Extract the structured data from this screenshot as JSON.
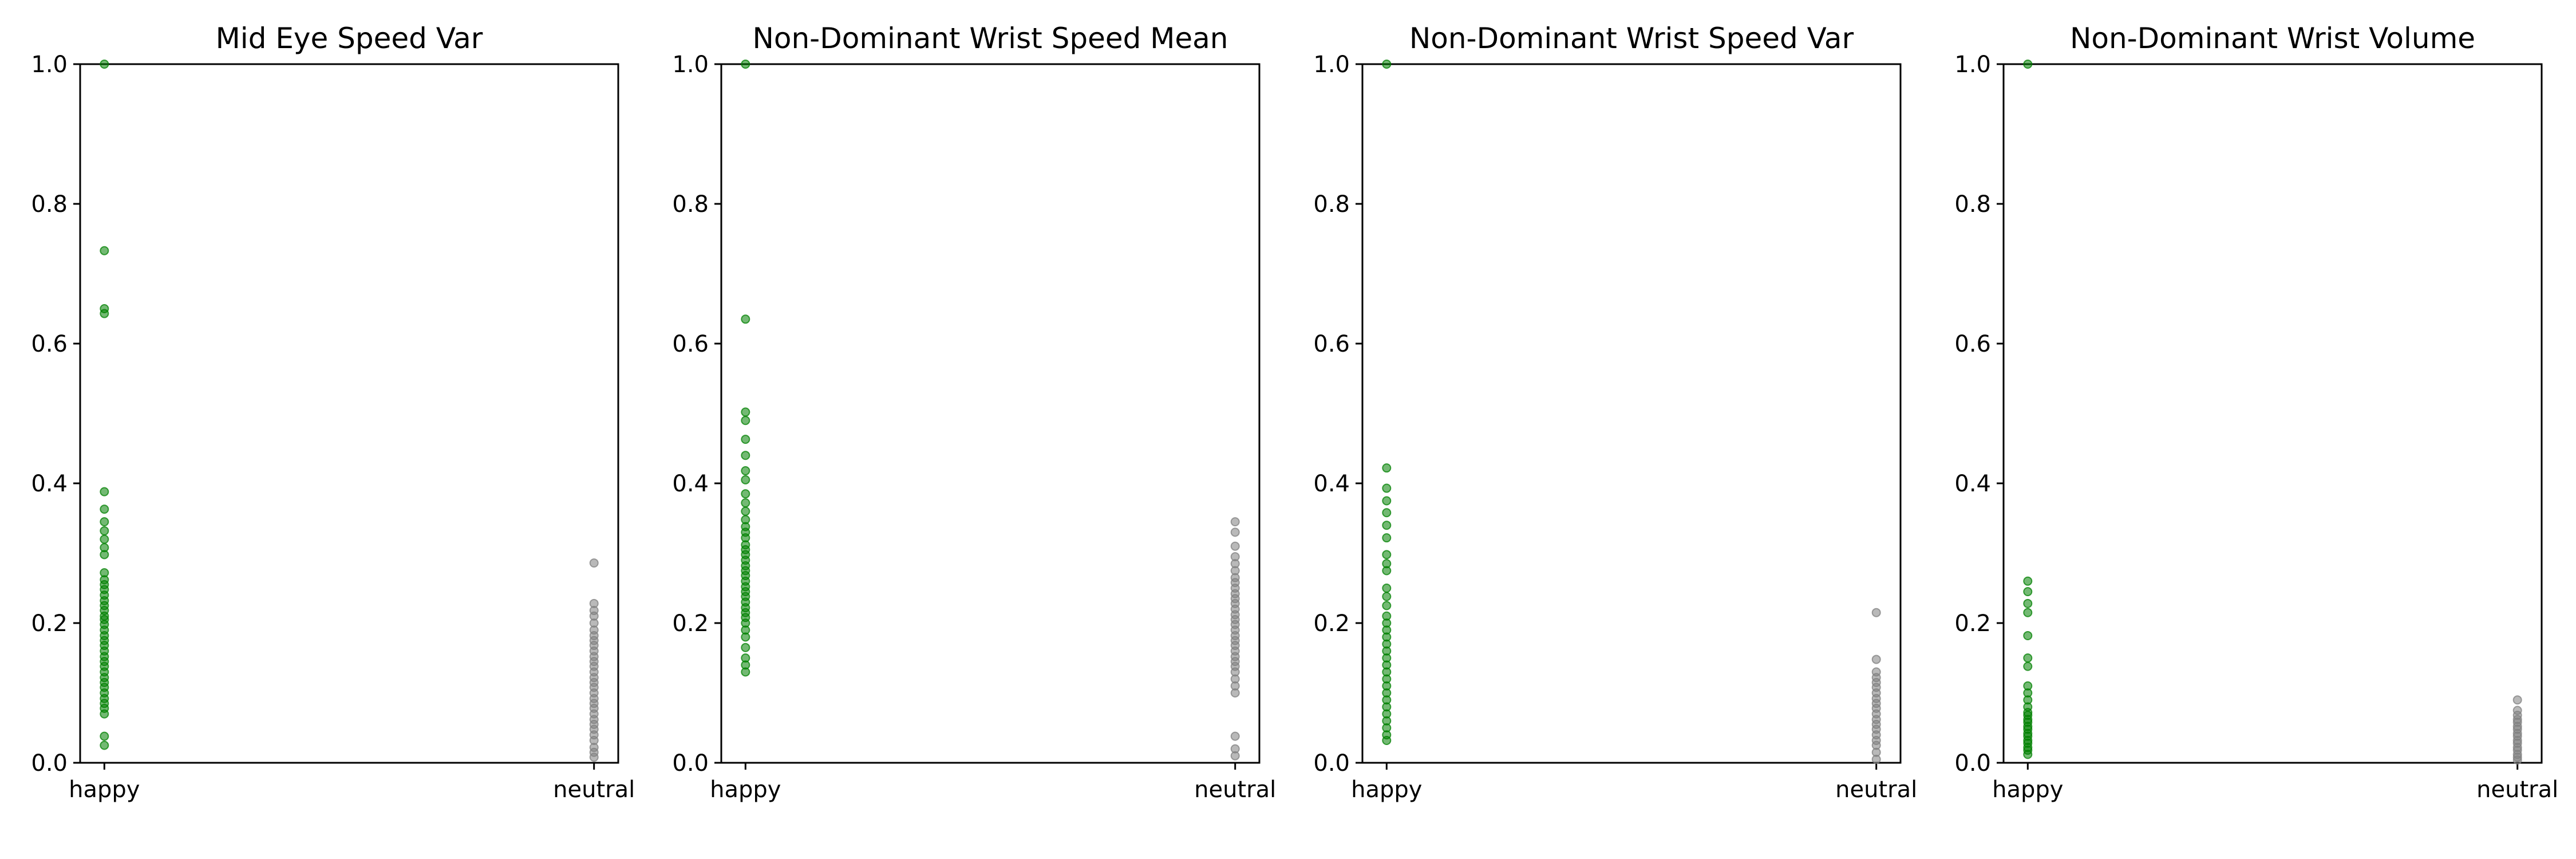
{
  "chart_data": [
    {
      "type": "scatter",
      "title": "Mid Eye Speed Var",
      "categories": [
        "happy",
        "neutral"
      ],
      "ylim": [
        0,
        1
      ],
      "yticks": [
        "0.0",
        "0.2",
        "0.4",
        "0.6",
        "0.8",
        "1.0"
      ],
      "grid": false,
      "series": [
        {
          "category": "happy",
          "color": "#008000",
          "values": [
            1.0,
            0.733,
            0.65,
            0.643,
            0.388,
            0.363,
            0.345,
            0.332,
            0.32,
            0.308,
            0.298,
            0.272,
            0.262,
            0.255,
            0.248,
            0.24,
            0.232,
            0.225,
            0.218,
            0.21,
            0.205,
            0.198,
            0.19,
            0.182,
            0.175,
            0.168,
            0.16,
            0.152,
            0.145,
            0.138,
            0.13,
            0.122,
            0.115,
            0.108,
            0.1,
            0.092,
            0.085,
            0.078,
            0.07,
            0.038,
            0.025
          ]
        },
        {
          "category": "neutral",
          "color": "#808080",
          "values": [
            0.286,
            0.228,
            0.218,
            0.21,
            0.2,
            0.19,
            0.182,
            0.175,
            0.168,
            0.16,
            0.152,
            0.145,
            0.138,
            0.13,
            0.122,
            0.115,
            0.108,
            0.1,
            0.092,
            0.085,
            0.078,
            0.07,
            0.062,
            0.055,
            0.048,
            0.04,
            0.032,
            0.022,
            0.015,
            0.008
          ]
        }
      ]
    },
    {
      "type": "scatter",
      "title": "Non-Dominant Wrist Speed Mean",
      "categories": [
        "happy",
        "neutral"
      ],
      "ylim": [
        0,
        1
      ],
      "yticks": [
        "0.0",
        "0.2",
        "0.4",
        "0.6",
        "0.8",
        "1.0"
      ],
      "grid": false,
      "series": [
        {
          "category": "happy",
          "color": "#008000",
          "values": [
            1.0,
            0.635,
            0.502,
            0.49,
            0.463,
            0.44,
            0.418,
            0.405,
            0.385,
            0.372,
            0.36,
            0.348,
            0.338,
            0.33,
            0.322,
            0.312,
            0.305,
            0.298,
            0.29,
            0.282,
            0.275,
            0.268,
            0.26,
            0.252,
            0.245,
            0.238,
            0.23,
            0.222,
            0.215,
            0.208,
            0.2,
            0.19,
            0.18,
            0.165,
            0.15,
            0.14,
            0.13
          ]
        },
        {
          "category": "neutral",
          "color": "#808080",
          "values": [
            0.345,
            0.33,
            0.31,
            0.295,
            0.285,
            0.275,
            0.265,
            0.258,
            0.25,
            0.242,
            0.235,
            0.228,
            0.22,
            0.212,
            0.205,
            0.198,
            0.19,
            0.182,
            0.175,
            0.168,
            0.16,
            0.152,
            0.145,
            0.138,
            0.13,
            0.12,
            0.11,
            0.1,
            0.038,
            0.02,
            0.01
          ]
        }
      ]
    },
    {
      "type": "scatter",
      "title": "Non-Dominant Wrist Speed Var",
      "categories": [
        "happy",
        "neutral"
      ],
      "ylim": [
        0,
        1
      ],
      "yticks": [
        "0.0",
        "0.2",
        "0.4",
        "0.6",
        "0.8",
        "1.0"
      ],
      "grid": false,
      "series": [
        {
          "category": "happy",
          "color": "#008000",
          "values": [
            1.0,
            0.422,
            0.393,
            0.375,
            0.358,
            0.34,
            0.322,
            0.298,
            0.285,
            0.275,
            0.25,
            0.238,
            0.225,
            0.21,
            0.2,
            0.19,
            0.18,
            0.17,
            0.16,
            0.15,
            0.14,
            0.13,
            0.12,
            0.11,
            0.1,
            0.09,
            0.08,
            0.07,
            0.06,
            0.05,
            0.04,
            0.032
          ]
        },
        {
          "category": "neutral",
          "color": "#808080",
          "values": [
            0.215,
            0.148,
            0.13,
            0.122,
            0.115,
            0.108,
            0.1,
            0.092,
            0.085,
            0.078,
            0.07,
            0.062,
            0.055,
            0.048,
            0.04,
            0.032,
            0.025,
            0.015,
            0.005
          ]
        }
      ]
    },
    {
      "type": "scatter",
      "title": "Non-Dominant Wrist Volume",
      "categories": [
        "happy",
        "neutral"
      ],
      "ylim": [
        0,
        1
      ],
      "yticks": [
        "0.0",
        "0.2",
        "0.4",
        "0.6",
        "0.8",
        "1.0"
      ],
      "grid": false,
      "series": [
        {
          "category": "happy",
          "color": "#008000",
          "values": [
            1.0,
            0.26,
            0.245,
            0.228,
            0.215,
            0.182,
            0.15,
            0.138,
            0.11,
            0.1,
            0.09,
            0.08,
            0.072,
            0.068,
            0.062,
            0.058,
            0.052,
            0.048,
            0.042,
            0.038,
            0.032,
            0.028,
            0.022,
            0.018,
            0.012
          ]
        },
        {
          "category": "neutral",
          "color": "#808080",
          "values": [
            0.09,
            0.075,
            0.068,
            0.062,
            0.058,
            0.052,
            0.048,
            0.042,
            0.038,
            0.032,
            0.028,
            0.022,
            0.018,
            0.012,
            0.008,
            0.004
          ]
        }
      ]
    }
  ]
}
